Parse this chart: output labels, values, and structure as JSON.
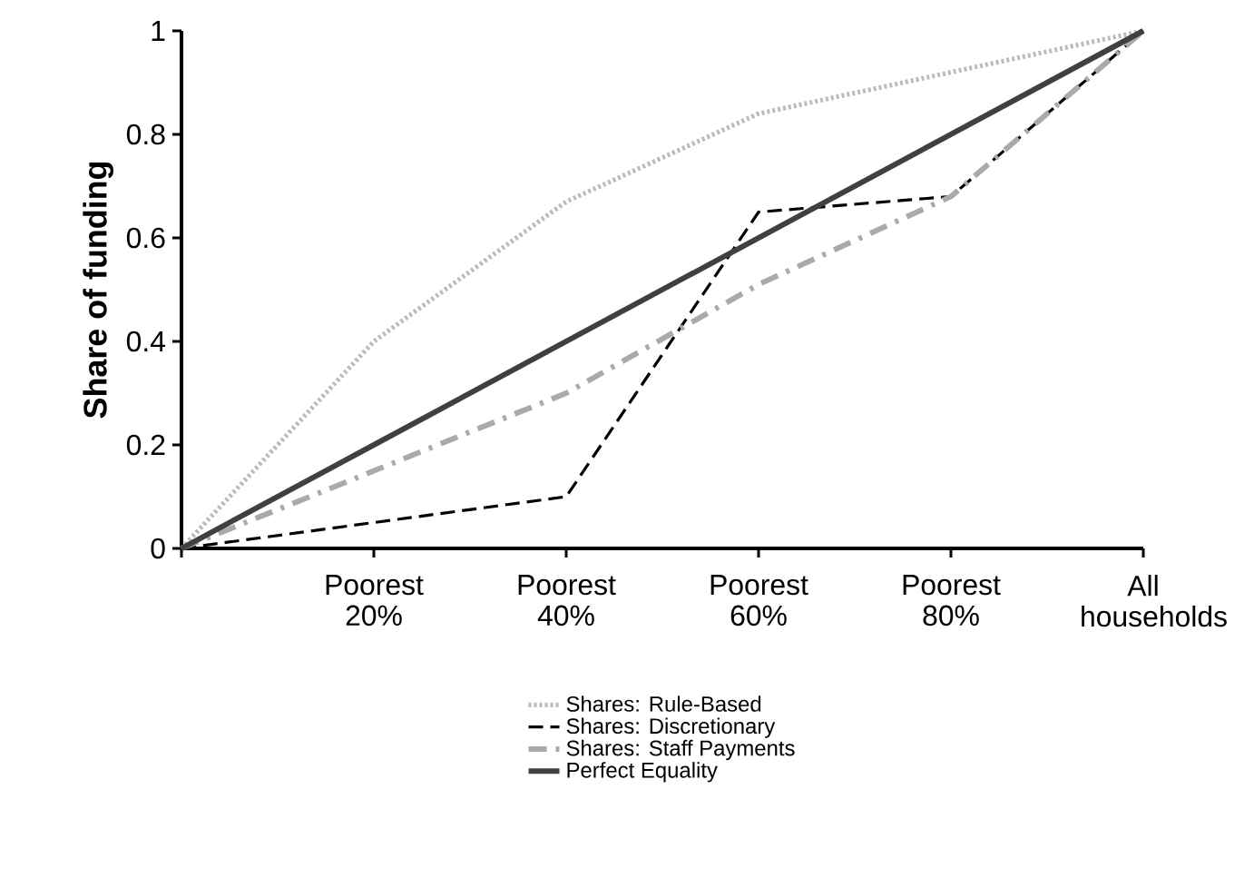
{
  "chart_data": {
    "type": "line",
    "ylabel": "Share of funding",
    "categories": [
      null,
      "Poorest 20%",
      "Poorest 40%",
      "Poorest 60%",
      "Poorest 80%",
      "All households"
    ],
    "series": [
      {
        "name": "Shares: Rule-Based",
        "color": "#bbbbbb",
        "line_style": "dotted",
        "values": [
          0,
          0.4,
          0.67,
          0.84,
          0.92,
          1
        ]
      },
      {
        "name": "Shares: Discretionary",
        "color": "#000000",
        "line_style": "dashed",
        "values": [
          0,
          0.05,
          0.1,
          0.65,
          0.68,
          1
        ]
      },
      {
        "name": "Shares: Staff Payments",
        "color": "#aaaaaa",
        "line_style": "dashed",
        "values": [
          0,
          0.15,
          0.3,
          0.51,
          0.68,
          1
        ]
      },
      {
        "name": "Perfect Equality",
        "color": "#404040",
        "line_style": "solid",
        "values": [
          0,
          0.2,
          0.4,
          0.6,
          0.8,
          1
        ]
      }
    ],
    "ylim": [
      0,
      1
    ],
    "yticks": [
      0,
      0.2,
      0.4,
      0.6,
      0.8,
      1
    ],
    "grid": false,
    "legend": "bottom",
    "marker": "none"
  }
}
